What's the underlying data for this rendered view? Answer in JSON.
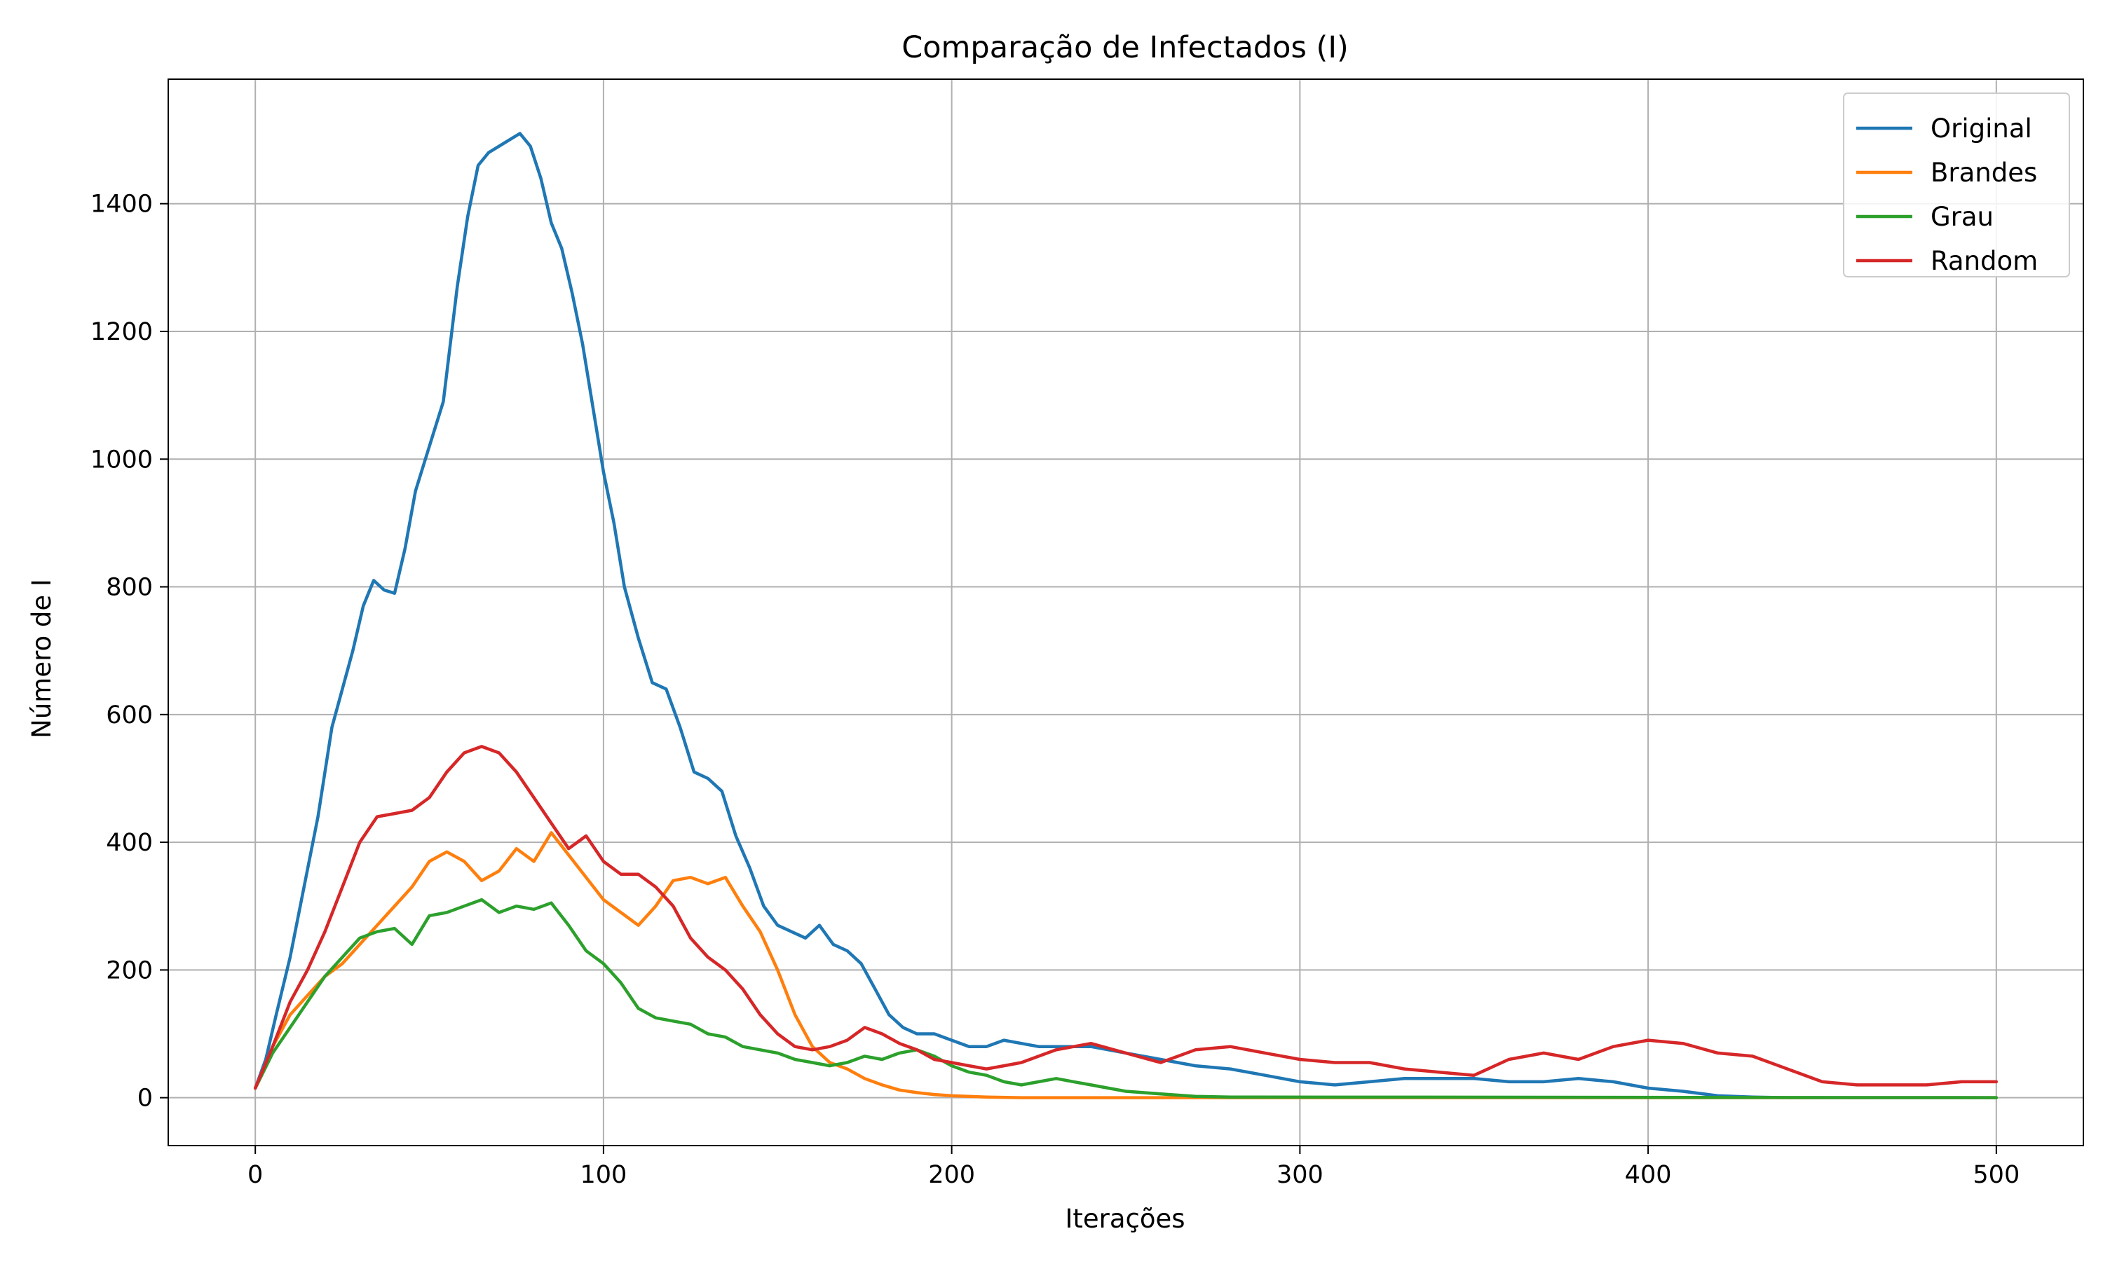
{
  "chart_data": {
    "type": "line",
    "title": "Comparação de Infectados (I)",
    "xlabel": "Iterações",
    "ylabel": "Número de I",
    "xlim": [
      -25,
      525
    ],
    "ylim": [
      -75,
      1595
    ],
    "xticks": [
      0,
      100,
      200,
      300,
      400,
      500
    ],
    "yticks": [
      0,
      200,
      400,
      600,
      800,
      1000,
      1200,
      1400
    ],
    "grid": true,
    "legend_position": "top-right",
    "series": [
      {
        "name": "Original",
        "color": "#1f77b4",
        "x": [
          0,
          3,
          6,
          10,
          14,
          18,
          22,
          25,
          28,
          31,
          34,
          37,
          40,
          43,
          46,
          50,
          54,
          58,
          61,
          64,
          67,
          70,
          73,
          76,
          79,
          82,
          85,
          88,
          91,
          94,
          97,
          100,
          103,
          106,
          110,
          114,
          118,
          122,
          126,
          130,
          134,
          138,
          142,
          146,
          150,
          154,
          158,
          162,
          166,
          170,
          174,
          178,
          182,
          186,
          190,
          195,
          200,
          205,
          210,
          215,
          220,
          225,
          230,
          240,
          250,
          260,
          270,
          280,
          290,
          300,
          310,
          320,
          330,
          340,
          350,
          360,
          370,
          380,
          390,
          400,
          410,
          420,
          430,
          440,
          450,
          460,
          470,
          480,
          490,
          500
        ],
        "y": [
          15,
          60,
          130,
          220,
          330,
          440,
          580,
          640,
          700,
          770,
          810,
          795,
          790,
          860,
          950,
          1020,
          1090,
          1270,
          1380,
          1460,
          1480,
          1490,
          1500,
          1510,
          1490,
          1440,
          1370,
          1330,
          1260,
          1180,
          1080,
          980,
          900,
          800,
          720,
          650,
          640,
          580,
          510,
          500,
          480,
          410,
          360,
          300,
          270,
          260,
          250,
          270,
          240,
          230,
          210,
          170,
          130,
          110,
          100,
          100,
          90,
          80,
          80,
          90,
          85,
          80,
          80,
          80,
          70,
          60,
          50,
          45,
          35,
          25,
          20,
          25,
          30,
          30,
          30,
          25,
          25,
          30,
          25,
          15,
          10,
          3,
          1,
          0,
          0,
          0,
          0,
          0,
          0,
          0
        ]
      },
      {
        "name": "Brandes",
        "color": "#ff7f0e",
        "x": [
          0,
          5,
          10,
          15,
          20,
          25,
          30,
          35,
          40,
          45,
          50,
          55,
          60,
          65,
          70,
          75,
          80,
          85,
          90,
          95,
          100,
          105,
          110,
          115,
          120,
          125,
          130,
          135,
          140,
          145,
          150,
          155,
          160,
          165,
          170,
          175,
          180,
          185,
          190,
          195,
          200,
          210,
          220,
          230,
          240,
          250,
          260,
          270,
          500
        ],
        "y": [
          15,
          80,
          130,
          160,
          190,
          210,
          240,
          270,
          300,
          330,
          370,
          385,
          370,
          340,
          355,
          390,
          370,
          415,
          380,
          345,
          310,
          290,
          270,
          300,
          340,
          345,
          335,
          345,
          300,
          260,
          200,
          130,
          80,
          55,
          45,
          30,
          20,
          12,
          8,
          5,
          3,
          1,
          0,
          0,
          0,
          0,
          0,
          0,
          0
        ]
      },
      {
        "name": "Grau",
        "color": "#2ca02c",
        "x": [
          0,
          5,
          10,
          15,
          20,
          25,
          30,
          35,
          40,
          45,
          50,
          55,
          60,
          65,
          70,
          75,
          80,
          85,
          90,
          95,
          100,
          105,
          110,
          115,
          120,
          125,
          130,
          135,
          140,
          145,
          150,
          155,
          160,
          165,
          170,
          175,
          180,
          185,
          190,
          195,
          200,
          205,
          210,
          215,
          220,
          225,
          230,
          235,
          240,
          245,
          250,
          255,
          260,
          265,
          270,
          280,
          500
        ],
        "y": [
          15,
          70,
          110,
          150,
          190,
          220,
          250,
          260,
          265,
          240,
          285,
          290,
          300,
          310,
          290,
          300,
          295,
          305,
          270,
          230,
          210,
          180,
          140,
          125,
          120,
          115,
          100,
          95,
          80,
          75,
          70,
          60,
          55,
          50,
          55,
          65,
          60,
          70,
          75,
          65,
          50,
          40,
          35,
          25,
          20,
          25,
          30,
          25,
          20,
          15,
          10,
          8,
          6,
          4,
          2,
          1,
          0
        ]
      },
      {
        "name": "Random",
        "color": "#d62728",
        "x": [
          0,
          5,
          10,
          15,
          20,
          25,
          30,
          35,
          40,
          45,
          50,
          55,
          60,
          65,
          70,
          75,
          80,
          85,
          90,
          95,
          100,
          105,
          110,
          115,
          120,
          125,
          130,
          135,
          140,
          145,
          150,
          155,
          160,
          165,
          170,
          175,
          180,
          185,
          190,
          195,
          200,
          205,
          210,
          215,
          220,
          225,
          230,
          240,
          250,
          260,
          270,
          280,
          290,
          300,
          310,
          320,
          330,
          340,
          350,
          360,
          370,
          380,
          390,
          400,
          410,
          420,
          430,
          440,
          450,
          460,
          470,
          480,
          490,
          500
        ],
        "y": [
          15,
          80,
          150,
          200,
          260,
          330,
          400,
          440,
          445,
          450,
          470,
          510,
          540,
          550,
          540,
          510,
          470,
          430,
          390,
          410,
          370,
          350,
          350,
          330,
          300,
          250,
          220,
          200,
          170,
          130,
          100,
          80,
          75,
          80,
          90,
          110,
          100,
          85,
          75,
          60,
          55,
          50,
          45,
          50,
          55,
          65,
          75,
          85,
          70,
          55,
          75,
          80,
          70,
          60,
          55,
          55,
          45,
          40,
          35,
          60,
          70,
          60,
          80,
          90,
          85,
          70,
          65,
          45,
          25,
          20,
          20,
          20,
          25,
          25
        ]
      }
    ]
  }
}
